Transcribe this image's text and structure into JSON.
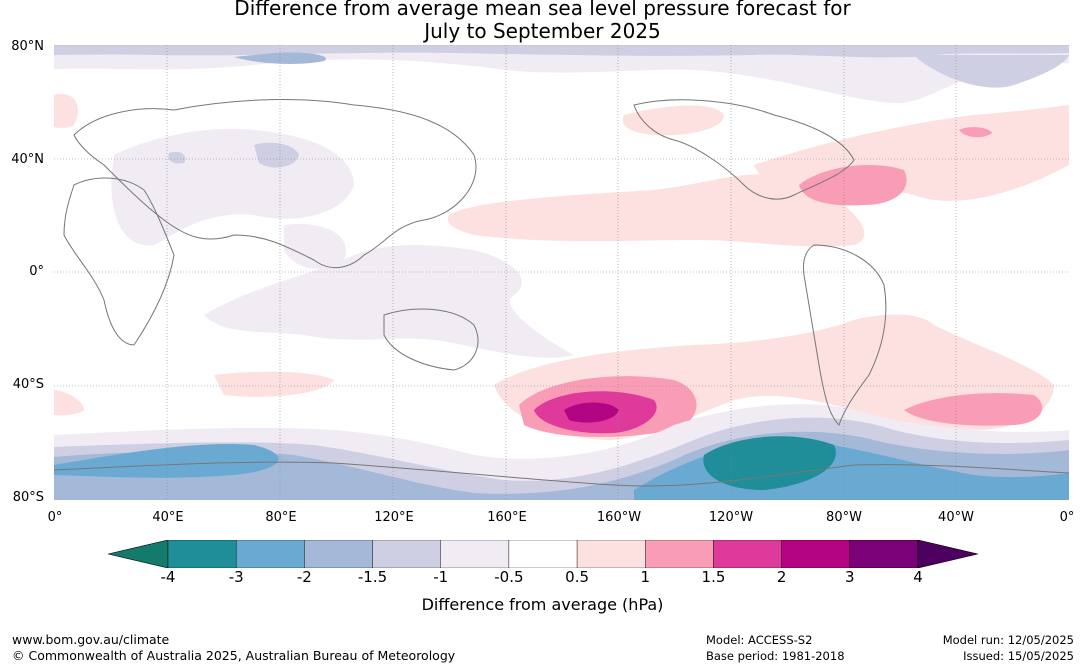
{
  "title": {
    "line1": "Difference from average mean sea level pressure forecast for",
    "line2": "July to September 2025"
  },
  "axes": {
    "lat_labels": [
      "80°N",
      "40°N",
      "0°",
      "40°S",
      "80°S"
    ],
    "lon_labels": [
      "0°",
      "40°E",
      "80°E",
      "120°E",
      "160°E",
      "160°W",
      "120°W",
      "80°W",
      "40°W",
      "0°"
    ]
  },
  "legend": {
    "title": "Difference from average (hPa)",
    "ticks": [
      "-4",
      "-3",
      "-2",
      "-1.5",
      "-1",
      "-0.5",
      "0.5",
      "1",
      "1.5",
      "2",
      "3",
      "4"
    ],
    "colors": [
      "#137a6c",
      "#1f8e98",
      "#6aaad2",
      "#a4b8d8",
      "#cfcfe4",
      "#f1ebf3",
      "#ffffff",
      "#fde0e0",
      "#f99db7",
      "#de399b",
      "#b30483",
      "#7a0178",
      "#4d005f"
    ]
  },
  "footer": {
    "website": "www.bom.gov.au/climate",
    "copyright": "© Commonwealth of Australia 2025, Australian Bureau of Meteorology",
    "model": "Model: ACCESS-S2",
    "base_period": "Base period: 1981-2018",
    "model_run": "Model run: 12/05/2025",
    "issued": "Issued: 15/05/2025"
  }
}
